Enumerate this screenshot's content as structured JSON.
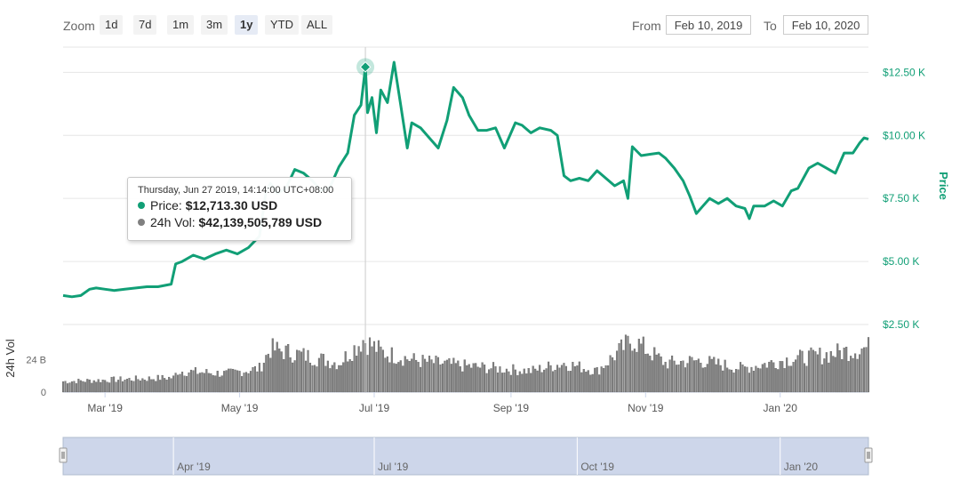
{
  "toolbar": {
    "zoom_label": "Zoom",
    "buttons": [
      {
        "label": "1d"
      },
      {
        "label": "7d"
      },
      {
        "label": "1m"
      },
      {
        "label": "3m"
      },
      {
        "label": "1y",
        "active": true
      },
      {
        "label": "YTD"
      },
      {
        "label": "ALL"
      }
    ],
    "from_label": "From",
    "from_value": "Feb 10, 2019",
    "to_label": "To",
    "to_value": "Feb 10, 2020"
  },
  "tooltip": {
    "date": "Thursday, Jun 27 2019, 14:14:00 UTC+08:00",
    "price_label": "Price:",
    "price_value": "$12,713.30 USD",
    "vol_label": "24h Vol:",
    "vol_value": "$42,139,505,789 USD"
  },
  "colors": {
    "price_line": "#119f76",
    "volume_bar": "#808080",
    "axis_text": "#119f76",
    "navigator_fill": "#cdd6ea"
  },
  "chart_data": {
    "type": "line",
    "x_range": [
      "2019-02-10",
      "2020-02-10"
    ],
    "price_axis": {
      "label": "Price",
      "ticks": [
        2500,
        5000,
        7500,
        10000,
        12500
      ],
      "tick_labels": [
        "$2.50 K",
        "$5.00 K",
        "$7.50 K",
        "$10.00 K",
        "$12.50 K"
      ],
      "range": [
        2500,
        13500
      ]
    },
    "volume_axis": {
      "label": "24h Vol",
      "ticks": [
        0,
        24
      ],
      "tick_labels": [
        "0",
        "24 B"
      ],
      "unit": "B",
      "range": [
        0,
        50
      ]
    },
    "x_tick_labels": [
      "Mar '19",
      "May '19",
      "Jul '19",
      "Sep '19",
      "Nov '19",
      "Jan '20"
    ],
    "x_tick_dates": [
      "2019-03-01",
      "2019-05-01",
      "2019-07-01",
      "2019-09-01",
      "2019-11-01",
      "2020-01-01"
    ],
    "navigator_labels": [
      "Apr '19",
      "Jul '19",
      "Oct '19",
      "Jan '20"
    ],
    "navigator_dates": [
      "2019-04-01",
      "2019-07-01",
      "2019-10-01",
      "2020-01-01"
    ],
    "hover_date": "2019-06-27",
    "price": [
      [
        "2019-02-10",
        3650
      ],
      [
        "2019-02-14",
        3600
      ],
      [
        "2019-02-18",
        3650
      ],
      [
        "2019-02-22",
        3900
      ],
      [
        "2019-02-25",
        3950
      ],
      [
        "2019-03-01",
        3900
      ],
      [
        "2019-03-05",
        3850
      ],
      [
        "2019-03-10",
        3900
      ],
      [
        "2019-03-15",
        3950
      ],
      [
        "2019-03-20",
        4000
      ],
      [
        "2019-03-25",
        4000
      ],
      [
        "2019-03-31",
        4100
      ],
      [
        "2019-04-02",
        4900
      ],
      [
        "2019-04-05",
        5000
      ],
      [
        "2019-04-10",
        5250
      ],
      [
        "2019-04-15",
        5100
      ],
      [
        "2019-04-20",
        5300
      ],
      [
        "2019-04-25",
        5450
      ],
      [
        "2019-04-30",
        5300
      ],
      [
        "2019-05-05",
        5550
      ],
      [
        "2019-05-10",
        6000
      ],
      [
        "2019-05-13",
        7800
      ],
      [
        "2019-05-15",
        8100
      ],
      [
        "2019-05-18",
        7700
      ],
      [
        "2019-05-22",
        7900
      ],
      [
        "2019-05-26",
        8650
      ],
      [
        "2019-05-30",
        8500
      ],
      [
        "2019-06-03",
        8200
      ],
      [
        "2019-06-07",
        7800
      ],
      [
        "2019-06-11",
        7950
      ],
      [
        "2019-06-15",
        8750
      ],
      [
        "2019-06-19",
        9300
      ],
      [
        "2019-06-22",
        10800
      ],
      [
        "2019-06-25",
        11200
      ],
      [
        "2019-06-27",
        12713
      ],
      [
        "2019-06-28",
        10900
      ],
      [
        "2019-06-30",
        11500
      ],
      [
        "2019-07-02",
        10100
      ],
      [
        "2019-07-04",
        11800
      ],
      [
        "2019-07-07",
        11300
      ],
      [
        "2019-07-10",
        12900
      ],
      [
        "2019-07-13",
        11200
      ],
      [
        "2019-07-16",
        9500
      ],
      [
        "2019-07-18",
        10500
      ],
      [
        "2019-07-22",
        10300
      ],
      [
        "2019-07-26",
        9900
      ],
      [
        "2019-07-30",
        9500
      ],
      [
        "2019-08-03",
        10600
      ],
      [
        "2019-08-06",
        11900
      ],
      [
        "2019-08-10",
        11500
      ],
      [
        "2019-08-13",
        10800
      ],
      [
        "2019-08-17",
        10200
      ],
      [
        "2019-08-21",
        10200
      ],
      [
        "2019-08-25",
        10300
      ],
      [
        "2019-08-29",
        9500
      ],
      [
        "2019-09-03",
        10500
      ],
      [
        "2019-09-06",
        10400
      ],
      [
        "2019-09-10",
        10100
      ],
      [
        "2019-09-14",
        10300
      ],
      [
        "2019-09-19",
        10200
      ],
      [
        "2019-09-22",
        10000
      ],
      [
        "2019-09-25",
        8400
      ],
      [
        "2019-09-28",
        8200
      ],
      [
        "2019-10-02",
        8300
      ],
      [
        "2019-10-06",
        8200
      ],
      [
        "2019-10-10",
        8600
      ],
      [
        "2019-10-14",
        8300
      ],
      [
        "2019-10-18",
        8000
      ],
      [
        "2019-10-22",
        8200
      ],
      [
        "2019-10-24",
        7500
      ],
      [
        "2019-10-26",
        9550
      ],
      [
        "2019-10-30",
        9200
      ],
      [
        "2019-11-03",
        9250
      ],
      [
        "2019-11-07",
        9300
      ],
      [
        "2019-11-10",
        9100
      ],
      [
        "2019-11-14",
        8700
      ],
      [
        "2019-11-18",
        8200
      ],
      [
        "2019-11-21",
        7600
      ],
      [
        "2019-11-24",
        6900
      ],
      [
        "2019-11-27",
        7200
      ],
      [
        "2019-11-30",
        7500
      ],
      [
        "2019-12-04",
        7300
      ],
      [
        "2019-12-08",
        7500
      ],
      [
        "2019-12-12",
        7200
      ],
      [
        "2019-12-16",
        7100
      ],
      [
        "2019-12-18",
        6700
      ],
      [
        "2019-12-20",
        7200
      ],
      [
        "2019-12-25",
        7200
      ],
      [
        "2019-12-29",
        7400
      ],
      [
        "2020-01-02",
        7200
      ],
      [
        "2020-01-06",
        7800
      ],
      [
        "2020-01-09",
        7900
      ],
      [
        "2020-01-14",
        8700
      ],
      [
        "2020-01-18",
        8900
      ],
      [
        "2020-01-22",
        8700
      ],
      [
        "2020-01-26",
        8500
      ],
      [
        "2020-01-30",
        9300
      ],
      [
        "2020-02-03",
        9300
      ],
      [
        "2020-02-06",
        9700
      ],
      [
        "2020-02-08",
        9900
      ],
      [
        "2020-02-10",
        9850
      ]
    ],
    "volume_knots": [
      [
        "2019-02-10",
        8
      ],
      [
        "2019-03-15",
        10
      ],
      [
        "2019-04-01",
        11
      ],
      [
        "2019-04-03",
        16
      ],
      [
        "2019-04-25",
        14
      ],
      [
        "2019-05-10",
        18
      ],
      [
        "2019-05-15",
        33
      ],
      [
        "2019-05-30",
        28
      ],
      [
        "2019-06-15",
        22
      ],
      [
        "2019-06-26",
        40
      ],
      [
        "2019-07-05",
        30
      ],
      [
        "2019-07-20",
        24
      ],
      [
        "2019-08-10",
        20
      ],
      [
        "2019-09-10",
        16
      ],
      [
        "2019-09-25",
        22
      ],
      [
        "2019-10-10",
        16
      ],
      [
        "2019-10-26",
        40
      ],
      [
        "2019-11-10",
        22
      ],
      [
        "2019-11-25",
        24
      ],
      [
        "2019-12-15",
        18
      ],
      [
        "2020-01-05",
        25
      ],
      [
        "2020-01-20",
        28
      ],
      [
        "2020-02-10",
        34
      ]
    ]
  }
}
